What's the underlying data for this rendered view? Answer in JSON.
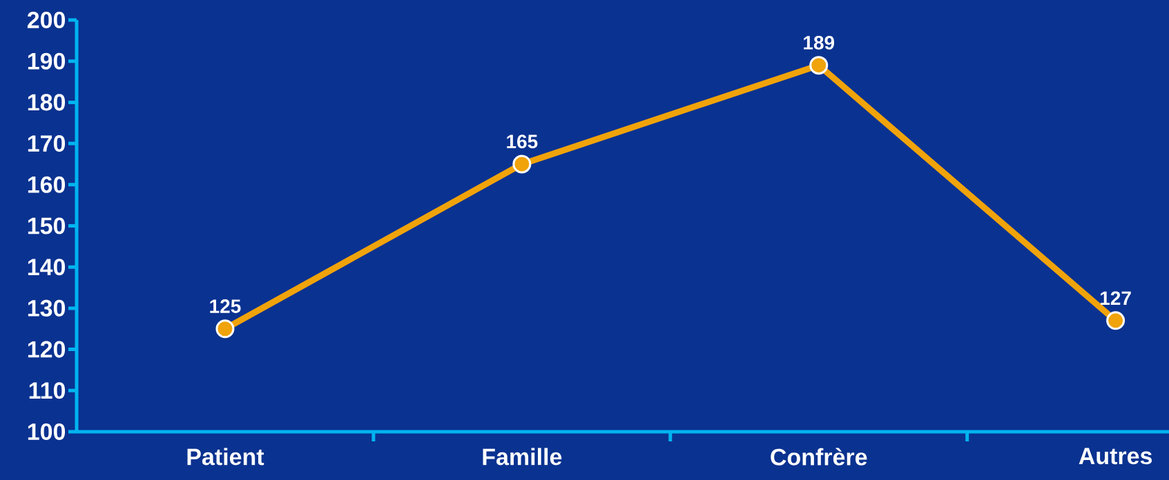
{
  "chart_data": {
    "type": "line",
    "categories": [
      "Patient",
      "Famille",
      "Confrère",
      "Autres"
    ],
    "values": [
      125,
      165,
      189,
      127
    ],
    "color": "#f0a30a",
    "ylim": [
      100,
      200
    ],
    "yticks": [
      100,
      110,
      120,
      130,
      140,
      150,
      160,
      170,
      180,
      190,
      200
    ],
    "data_labels": true,
    "marker": "circle"
  }
}
